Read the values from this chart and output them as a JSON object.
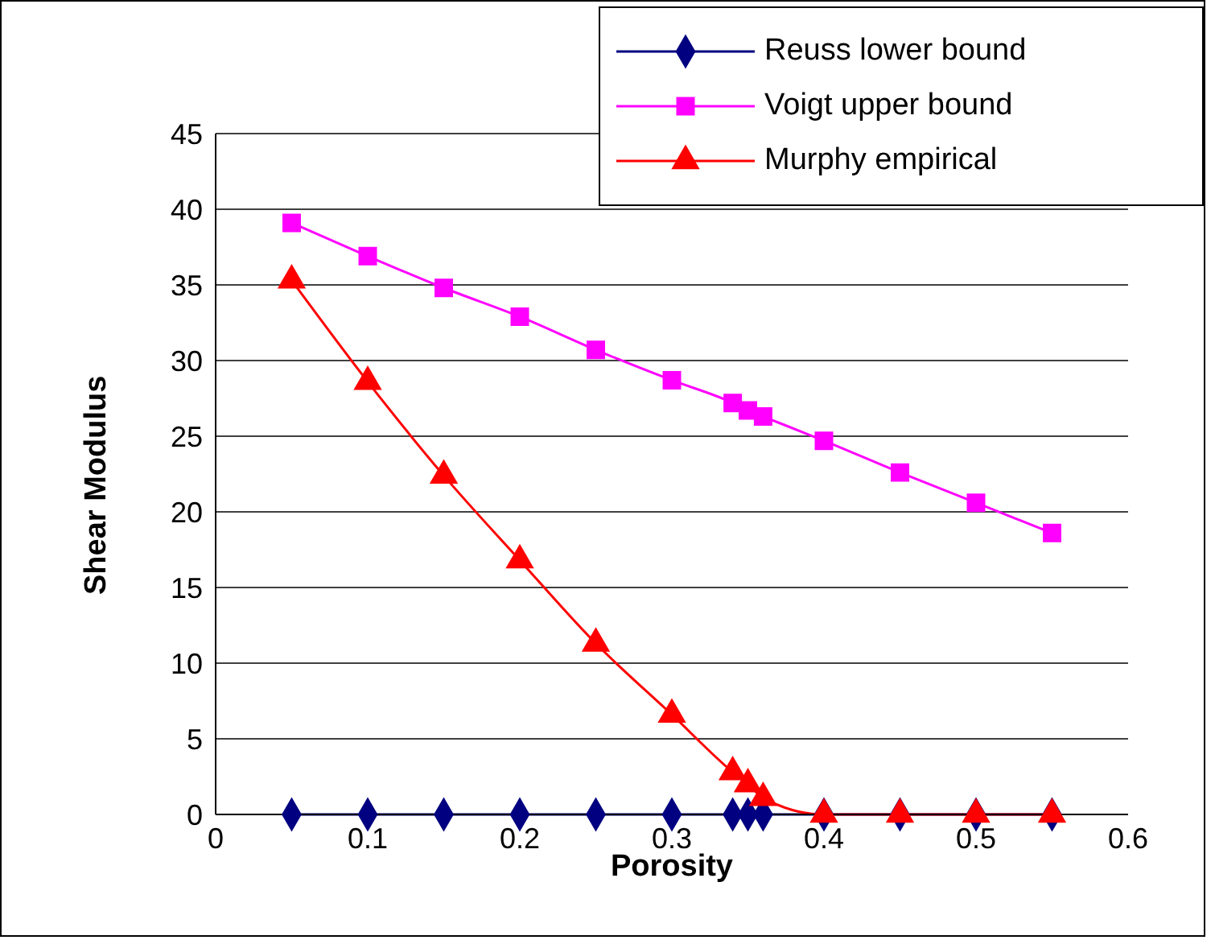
{
  "chart_data": {
    "type": "line",
    "xlabel": "Porosity",
    "ylabel": "Shear Modulus",
    "x": [
      0.05,
      0.1,
      0.15,
      0.2,
      0.25,
      0.3,
      0.34,
      0.35,
      0.36,
      0.4,
      0.45,
      0.5,
      0.55
    ],
    "series": [
      {
        "name": "Reuss lower bound",
        "color": "#000080",
        "marker": "diamond",
        "values": [
          0,
          0,
          0,
          0,
          0,
          0,
          0,
          0,
          0,
          0,
          0,
          0,
          0
        ]
      },
      {
        "name": "Voigt upper bound",
        "color": "#ff00ff",
        "marker": "square",
        "values": [
          39.1,
          36.9,
          34.8,
          32.9,
          30.7,
          28.7,
          27.2,
          26.7,
          26.3,
          24.7,
          22.6,
          20.6,
          18.6
        ]
      },
      {
        "name": "Murphy empirical",
        "color": "#ff0000",
        "marker": "triangle",
        "values": [
          35.3,
          28.6,
          22.4,
          16.8,
          11.3,
          6.6,
          2.8,
          2.0,
          1.1,
          0,
          0,
          0,
          0
        ]
      }
    ],
    "xlim": [
      0,
      0.6
    ],
    "xticks": [
      0,
      0.1,
      0.2,
      0.3,
      0.4,
      0.5,
      0.6
    ],
    "ylim": [
      0,
      45
    ],
    "yticks": [
      0,
      5,
      10,
      15,
      20,
      25,
      30,
      35,
      40,
      45
    ],
    "grid": "y",
    "legend": "top right"
  }
}
